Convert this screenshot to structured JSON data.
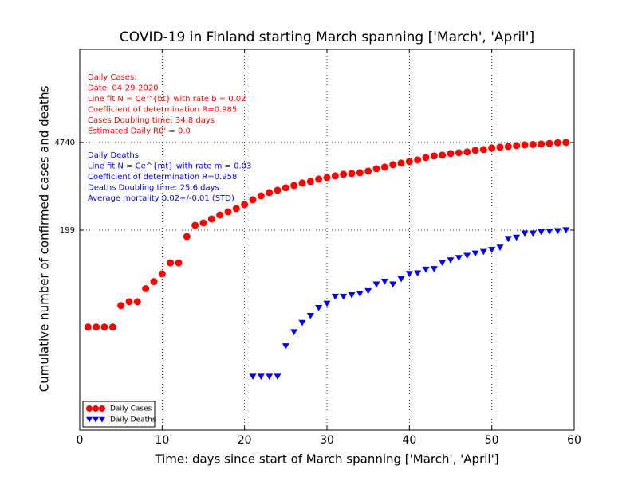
{
  "chart_data": {
    "type": "scatter",
    "title": "COVID-19 in Finland starting March spanning ['March', 'April']",
    "x_label": "Time: days since start of March spanning ['March', 'April']",
    "y_label": "Cumulative number of confirmed cases and deaths",
    "x": [
      1,
      2,
      3,
      4,
      5,
      6,
      7,
      8,
      9,
      10,
      11,
      12,
      13,
      14,
      15,
      16,
      17,
      18,
      19,
      20,
      21,
      22,
      23,
      24,
      25,
      26,
      27,
      28,
      29,
      30,
      31,
      32,
      33,
      34,
      35,
      36,
      37,
      38,
      39,
      40,
      41,
      42,
      43,
      44,
      45,
      46,
      47,
      48,
      49,
      50,
      51,
      52,
      53,
      54,
      55,
      56,
      57,
      58,
      59
    ],
    "series": [
      {
        "name": "Daily Cases",
        "color": "#ff0000",
        "marker": "circle",
        "values": [
          6,
          6,
          6,
          6,
          13,
          15,
          15,
          24,
          31,
          41,
          61,
          61,
          158,
          237,
          258,
          298,
          344,
          386,
          434,
          501,
          596,
          687,
          772,
          842,
          919,
          1000,
          1091,
          1156,
          1260,
          1334,
          1413,
          1497,
          1540,
          1586,
          1680,
          1832,
          1941,
          2117,
          2243,
          2377,
          2518,
          2744,
          2907,
          2991,
          3170,
          3260,
          3357,
          3556,
          3657,
          3873,
          3990,
          4100,
          4225,
          4345,
          4395,
          4475,
          4576,
          4695,
          4740
        ]
      },
      {
        "name": "Daily Deaths",
        "color": "#0000ff",
        "marker": "triangle-down",
        "values": [
          null,
          null,
          null,
          null,
          null,
          null,
          null,
          null,
          null,
          null,
          null,
          null,
          null,
          null,
          null,
          null,
          null,
          null,
          null,
          null,
          1,
          1,
          1,
          1,
          3,
          5,
          7,
          9,
          12,
          14,
          18,
          18,
          19,
          20,
          22,
          28,
          31,
          28,
          34,
          41,
          42,
          48,
          49,
          61,
          67,
          73,
          79,
          86,
          91,
          98,
          106,
          145,
          152,
          177,
          177,
          186,
          190,
          193,
          199
        ]
      }
    ],
    "xlim": [
      0,
      60
    ],
    "xticks": [
      0,
      10,
      20,
      30,
      40,
      50,
      60
    ],
    "ylim": [
      0.145,
      137000
    ],
    "yticks": [
      199,
      4740
    ],
    "log_y": true,
    "grid": true,
    "legend": "lower left",
    "annotations": [
      {
        "color": "#ff0000",
        "lines": [
          "Daily Cases:",
          "Date: 04-29-2020",
          "Line fit N = Ce^{bt} with rate b = 0.02",
          "Coefficient of determination R=0.985",
          "Cases Doubling time: 34.8 days",
          "Estimated Daily R0' = 0.0"
        ]
      },
      {
        "color": "#0000ff",
        "lines": [
          "Daily Deaths:",
          "Line fit N = Ce^{mt} with rate m = 0.03",
          "Coefficient of determination R=0.958",
          "Deaths Doubling time: 25.6 days",
          "Average mortality 0.02+/-0.01 (STD)"
        ]
      }
    ]
  }
}
